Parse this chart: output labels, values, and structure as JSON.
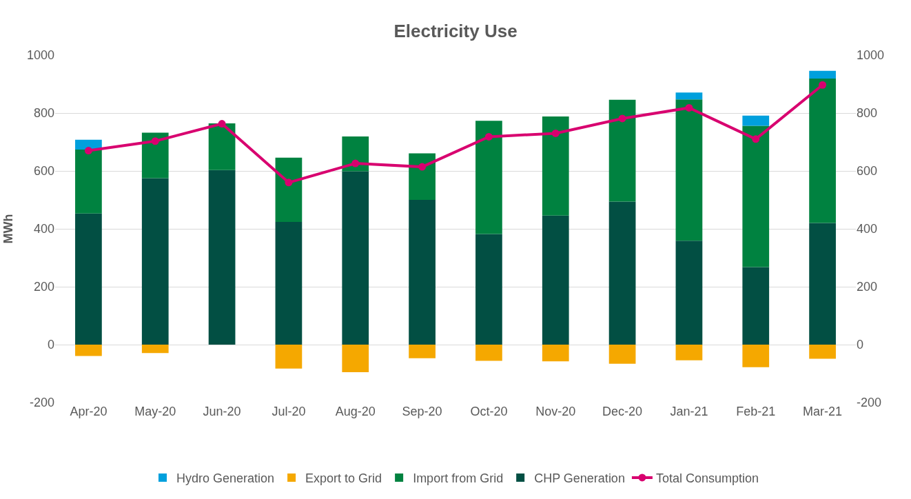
{
  "chart_data": {
    "type": "bar",
    "title": "Electricity Use",
    "ylabel": "MWh",
    "categories": [
      "Apr-20",
      "May-20",
      "Jun-20",
      "Jul-20",
      "Aug-20",
      "Sep-20",
      "Oct-20",
      "Nov-20",
      "Dec-20",
      "Jan-21",
      "Feb-21",
      "Mar-21"
    ],
    "stacked": true,
    "grid": "y",
    "legend": "bottom",
    "ylim": [
      -200,
      1000
    ],
    "yticks": [
      -200,
      0,
      200,
      400,
      600,
      800,
      1000
    ],
    "y2lim": [
      -200,
      1000
    ],
    "y2ticks": [
      -200,
      0,
      200,
      400,
      600,
      800,
      1000
    ],
    "series": [
      {
        "name": "CHP Generation",
        "color": "#024f43",
        "values": [
          453,
          575,
          603,
          424,
          599,
          500,
          382,
          446,
          494,
          359,
          268,
          420
        ]
      },
      {
        "name": "Import from Grid",
        "color": "#008240",
        "values": [
          221,
          157,
          161,
          222,
          120,
          161,
          391,
          342,
          352,
          488,
          488,
          499
        ]
      },
      {
        "name": "Export to Grid",
        "color": "#f5a800",
        "values": [
          -39,
          -29,
          null,
          -83,
          -95,
          -47,
          -56,
          -58,
          -66,
          -54,
          -78,
          -49
        ]
      },
      {
        "name": "Hydro Generation",
        "color": "#00a0dd",
        "values": [
          34,
          null,
          null,
          null,
          null,
          null,
          null,
          null,
          null,
          24,
          35,
          27
        ]
      },
      {
        "name": "Total Consumption",
        "type": "line",
        "color": "#d8006f",
        "marker": "circle",
        "values": [
          670,
          703,
          763,
          560,
          626,
          614,
          718,
          730,
          781,
          818,
          710,
          897
        ]
      }
    ]
  }
}
